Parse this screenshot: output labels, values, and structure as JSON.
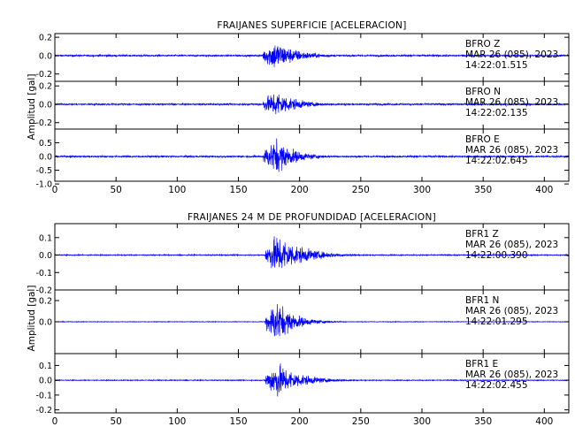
{
  "colors": {
    "trace": "#0000ff",
    "axis": "#000000",
    "background": "#ffffff"
  },
  "chart_data": [
    {
      "type": "line",
      "title": "FRAIJANES SUPERFICIE [ACELERACION]",
      "ylabel": "Amplitud [gal]",
      "xlabel": "",
      "xlim": [
        0,
        420
      ],
      "xticks": [
        0,
        50,
        100,
        150,
        200,
        250,
        300,
        350,
        400
      ],
      "grid": false,
      "series": [
        {
          "name": "BFR0 Z",
          "annotation": [
            "BFRO Z",
            "MAR 26 (085), 2023",
            "14:22:01.515"
          ],
          "ylim": [
            -0.28,
            0.24
          ],
          "yticks": [
            -0.2,
            0.0,
            0.2
          ],
          "ytick_labels": [
            "-0.2",
            "0.0",
            "0.2"
          ],
          "noise": 0.012,
          "onset": 170,
          "peak_time": 180,
          "peak": 0.22,
          "decay": 18,
          "coda": 320
        },
        {
          "name": "BFR0 N",
          "annotation": [
            "BFRO N",
            "MAR 26 (085), 2023",
            "14:22:02.135"
          ],
          "ylim": [
            -0.27,
            0.25
          ],
          "yticks": [
            -0.2,
            0.0,
            0.2
          ],
          "ytick_labels": [
            "-0.2",
            "0.0",
            "0.2"
          ],
          "noise": 0.012,
          "onset": 170,
          "peak_time": 181,
          "peak": 0.2,
          "decay": 16,
          "coda": 300
        },
        {
          "name": "BFR0 E",
          "annotation": [
            "BFRO E",
            "MAR 26 (085), 2023",
            "14:22:02.645"
          ],
          "ylim": [
            -0.9,
            1.0
          ],
          "yticks": [
            -1.0,
            -0.5,
            0.0,
            0.5
          ],
          "ytick_labels": [
            "-1.0",
            "-0.5",
            "0.0",
            "0.5"
          ],
          "noise": 0.04,
          "onset": 170,
          "peak_time": 181,
          "peak": 0.85,
          "decay": 15,
          "coda": 300
        }
      ]
    },
    {
      "type": "line",
      "title": "FRAIJANES 24 M DE PROFUNDIDAD [ACELERACION]",
      "ylabel": "Amplitud [gal]",
      "xlabel": "",
      "xlim": [
        0,
        420
      ],
      "xticks": [
        0,
        50,
        100,
        150,
        200,
        250,
        300,
        350,
        400
      ],
      "grid": false,
      "series": [
        {
          "name": "BFR1 Z",
          "annotation": [
            "BFR1 Z",
            "MAR 26 (085), 2023",
            "14:22:00.390"
          ],
          "ylim": [
            -0.2,
            0.18
          ],
          "yticks": [
            -0.2,
            -0.1,
            0.0,
            0.1
          ],
          "ytick_labels": [
            "-0.2",
            "-0.1",
            "0.0",
            "0.1"
          ],
          "noise": 0.004,
          "onset": 172,
          "peak_time": 182,
          "peak": 0.16,
          "decay": 20,
          "coda": 320
        },
        {
          "name": "BFR1 N",
          "annotation": [
            "BFR1 N",
            "MAR 26 (085), 2023",
            "14:22:01.295"
          ],
          "ylim": [
            -0.3,
            0.3
          ],
          "yticks": [
            0.0,
            0.2
          ],
          "ytick_labels": [
            "0.0",
            "0.2"
          ],
          "noise": 0.004,
          "onset": 172,
          "peak_time": 181,
          "peak": 0.27,
          "decay": 14,
          "coda": 300
        },
        {
          "name": "BFR1 E",
          "annotation": [
            "BFR1 E",
            "MAR 26 (085), 2023",
            "14:22:02.455"
          ],
          "ylim": [
            -0.22,
            0.18
          ],
          "yticks": [
            -0.2,
            -0.1,
            0.0,
            0.1
          ],
          "ytick_labels": [
            "-0.2",
            "-0.1",
            "0.0",
            "0.1"
          ],
          "noise": 0.004,
          "onset": 172,
          "peak_time": 182,
          "peak": 0.16,
          "decay": 18,
          "coda": 300
        }
      ]
    }
  ]
}
